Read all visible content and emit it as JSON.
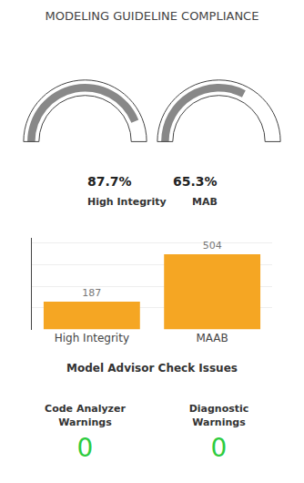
{
  "chart_data": [
    {
      "type": "gauge",
      "title": "MODELING GUIDELINE COMPLIANCE",
      "categories": [
        "High Integrity",
        "MAB"
      ],
      "values": [
        87.7,
        65.3
      ],
      "value_labels": [
        "87.7%",
        "65.3%"
      ],
      "ylim": [
        0,
        100
      ],
      "tick_labels": false,
      "color": "#888888"
    },
    {
      "type": "bar",
      "categories": [
        "High Integrity",
        "MAAB"
      ],
      "values": [
        187,
        504
      ],
      "color": "#F5A623",
      "xlabel": "Model Advisor Check Issues",
      "ylim": [
        0,
        614.88
      ],
      "yticks": [
        0,
        144.9,
        289.8,
        434.7,
        579.6
      ],
      "grid": true,
      "tick_labels": "x",
      "data_labels": true
    },
    {
      "type": "indicator",
      "categories": [
        "Code Analyzer\nWarnings",
        "Diagnostic\nWarnings"
      ],
      "values": [
        0,
        0
      ],
      "color": "#2ecc40"
    }
  ]
}
